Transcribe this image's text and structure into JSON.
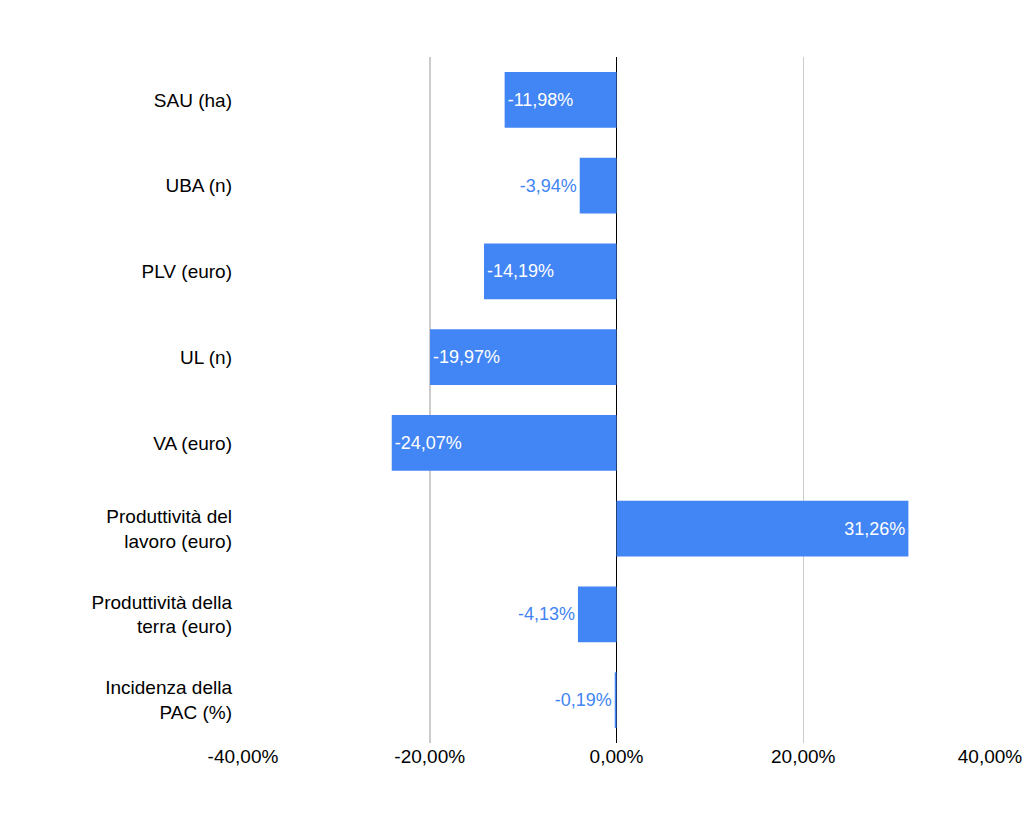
{
  "chart_data": {
    "type": "bar",
    "orientation": "horizontal",
    "categories": [
      "SAU (ha)",
      "UBA (n)",
      "PLV (euro)",
      "UL (n)",
      "VA (euro)",
      "Produttività del lavoro (euro)",
      "Produttività della terra (euro)",
      "Incidenza della PAC (%)"
    ],
    "values": [
      -11.98,
      -3.94,
      -14.19,
      -19.97,
      -24.07,
      31.26,
      -4.13,
      -0.19
    ],
    "value_labels": [
      "-11,98%",
      "-3,94%",
      "-14,19%",
      "-19,97%",
      "-24,07%",
      "31,26%",
      "-4,13%",
      "-0,19%"
    ],
    "color": "#4285f4",
    "xlim": [
      -40,
      40
    ],
    "xticks": [
      {
        "value": -40,
        "label": "-40,00%"
      },
      {
        "value": -20,
        "label": "-20,00%"
      },
      {
        "value": 0,
        "label": "0,00%"
      },
      {
        "value": 20,
        "label": "20,00%"
      },
      {
        "value": 40,
        "label": "40,00%"
      }
    ],
    "grid": true,
    "data_labels": true
  }
}
